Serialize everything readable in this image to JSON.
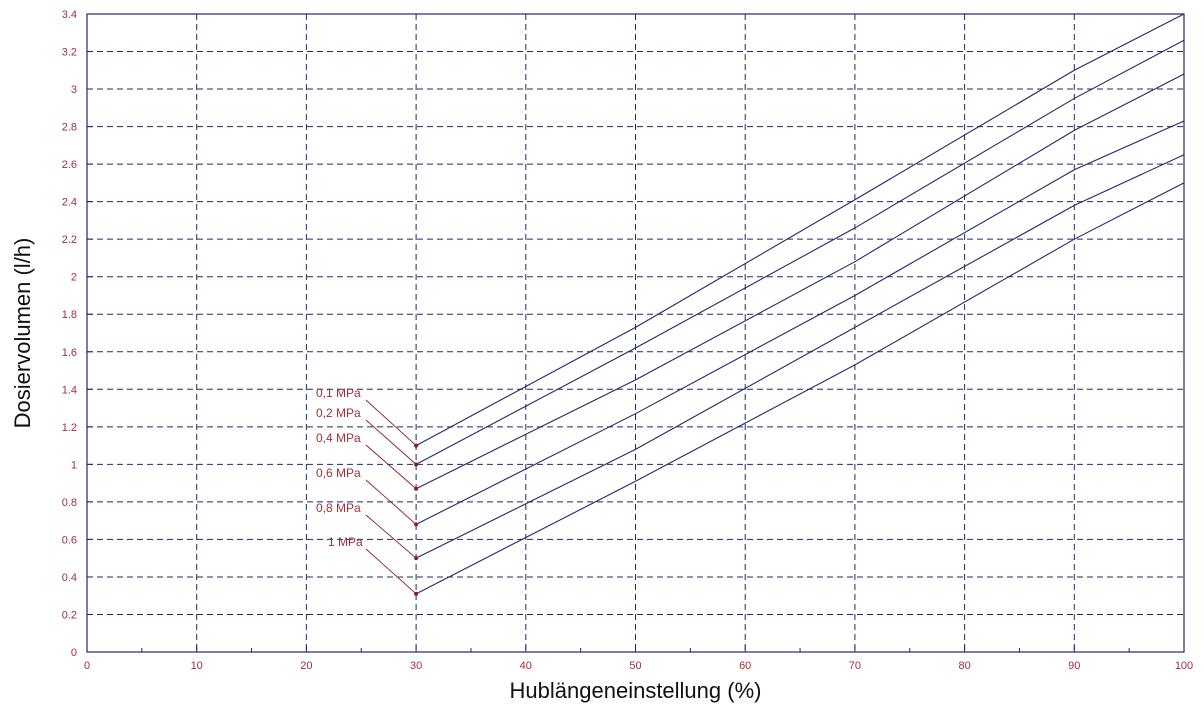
{
  "chart_data": {
    "type": "line",
    "xlabel": "Hublängeneinstellung (%)",
    "ylabel": "Dosiervolumen (l/h)",
    "xlim": [
      0,
      100
    ],
    "ylim": [
      0,
      3.4
    ],
    "x_ticks": [
      0,
      10,
      20,
      30,
      40,
      50,
      60,
      70,
      80,
      90,
      100
    ],
    "x_tick_labels": [
      "0",
      "10",
      "20",
      "30",
      "40",
      "50",
      "60",
      "70",
      "80",
      "90",
      "100"
    ],
    "y_ticks": [
      0,
      0.2,
      0.4,
      0.6,
      0.8,
      1.0,
      1.2,
      1.4,
      1.6,
      1.8,
      2.0,
      2.2,
      2.4,
      2.6,
      2.8,
      3.0,
      3.2,
      3.4
    ],
    "y_tick_labels": [
      "0",
      "0.2",
      "0.4",
      "0.6",
      "0.8",
      "1",
      "1.2",
      "1.4",
      "1.6",
      "1.8",
      "2",
      "2.2",
      "2.4",
      "2.6",
      "2.8",
      "3",
      "3.2",
      "3.4"
    ],
    "x_minor_step": 5,
    "grid": true,
    "series": [
      {
        "name": "0,1 MPa",
        "x": [
          30,
          50,
          70,
          90,
          100
        ],
        "y": [
          1.1,
          1.73,
          2.41,
          3.1,
          3.4
        ]
      },
      {
        "name": "0,2 MPa",
        "x": [
          30,
          50,
          70,
          90,
          100
        ],
        "y": [
          1.0,
          1.62,
          2.26,
          2.95,
          3.26
        ]
      },
      {
        "name": "0,4 MPa",
        "x": [
          30,
          50,
          70,
          90,
          100
        ],
        "y": [
          0.87,
          1.45,
          2.08,
          2.78,
          3.08
        ]
      },
      {
        "name": "0,6 MPa",
        "x": [
          30,
          50,
          70,
          90,
          100
        ],
        "y": [
          0.68,
          1.27,
          1.9,
          2.57,
          2.83
        ]
      },
      {
        "name": "0,8 MPa",
        "x": [
          30,
          50,
          70,
          90,
          100
        ],
        "y": [
          0.5,
          1.08,
          1.73,
          2.38,
          2.65
        ]
      },
      {
        "name": "1 MPa",
        "x": [
          30,
          50,
          70,
          90,
          100
        ],
        "y": [
          0.31,
          0.91,
          1.53,
          2.2,
          2.5
        ]
      }
    ],
    "colors": {
      "series": "#1f2a6b",
      "grid": "#1f2a6b",
      "tick_labels": "#a0303a",
      "annotations": "#8b1a2a",
      "axis_titles": "#111111",
      "background": "#ffffff"
    }
  }
}
